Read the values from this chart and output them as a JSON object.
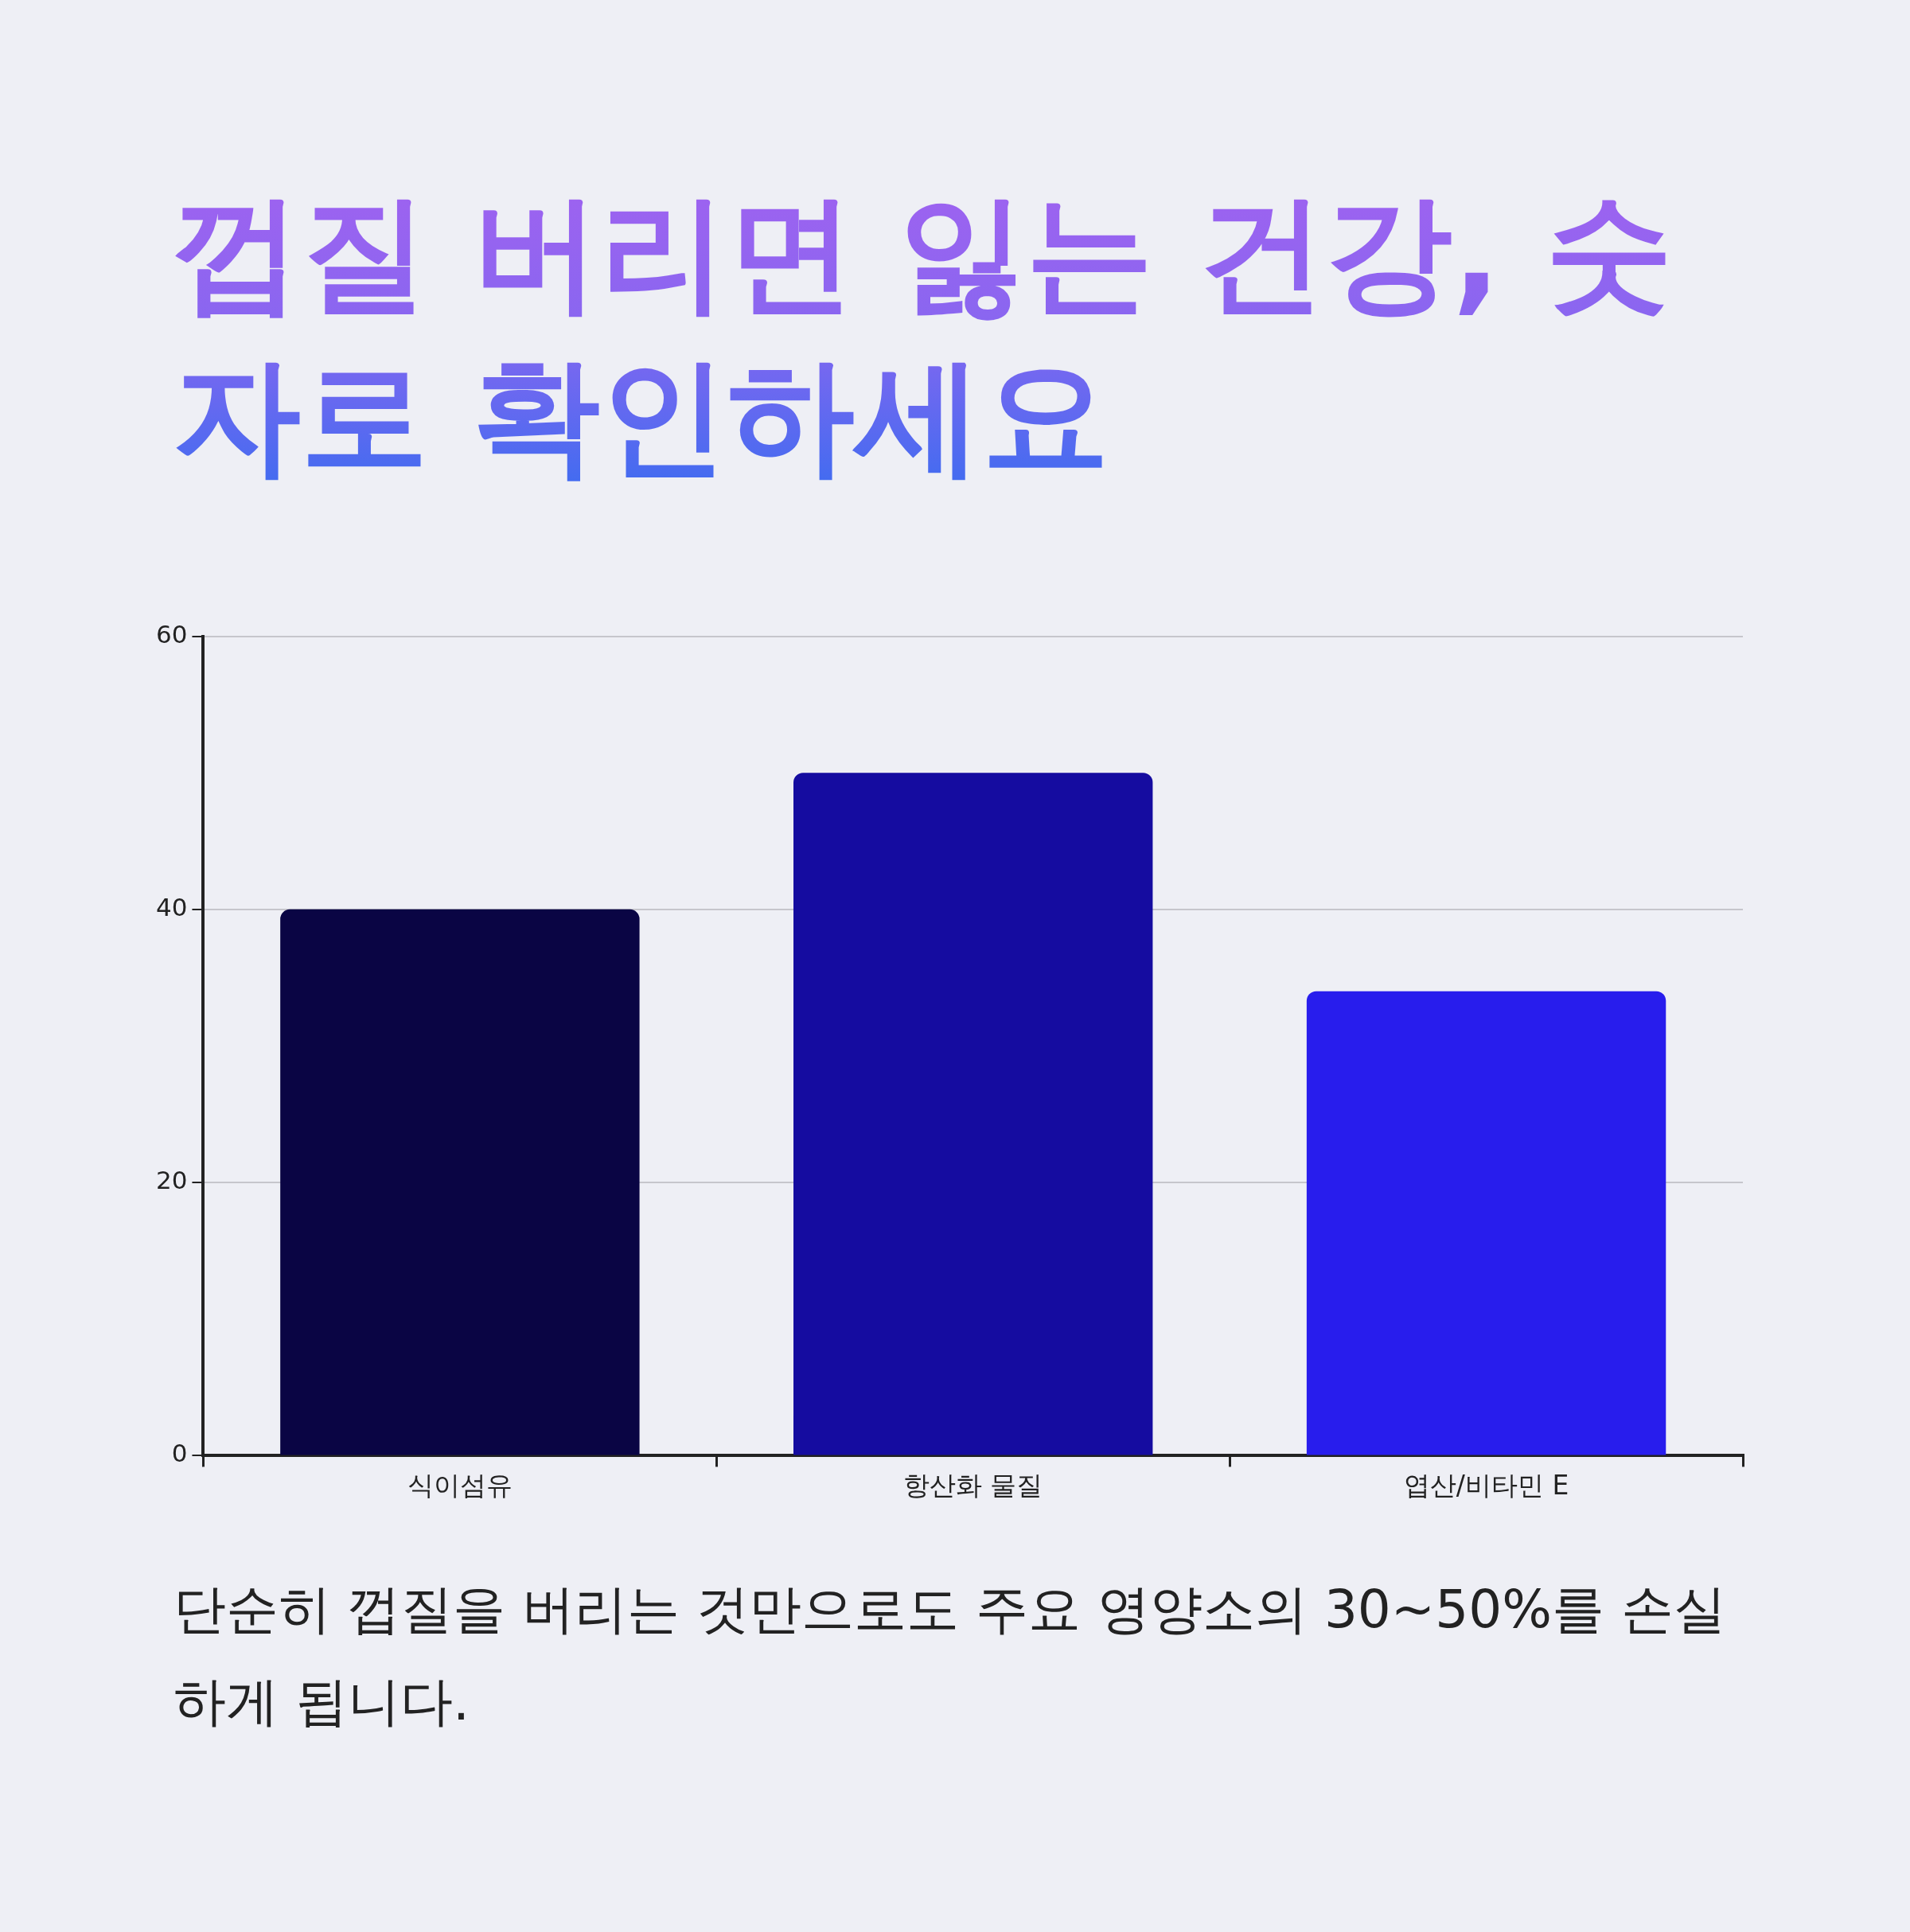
{
  "chart_data": {
    "type": "bar",
    "title": "껍질 버리면 잃는 건강, 숫자로 확인하세요",
    "categories": [
      "식이섬유",
      "항산화 물질",
      "엽산/비타민 E"
    ],
    "values": [
      40,
      50,
      34
    ],
    "colors": [
      "#0a0544",
      "#150ca0",
      "#281ded"
    ],
    "ylim": [
      0,
      60
    ],
    "yticks": [
      0,
      20,
      40,
      60
    ],
    "grid": "y",
    "legend": false,
    "annotations": [
      "단순히 껍질을 버리는 것만으로도 주요 영양소의 30~50%를 손실하게 됩니다."
    ]
  }
}
